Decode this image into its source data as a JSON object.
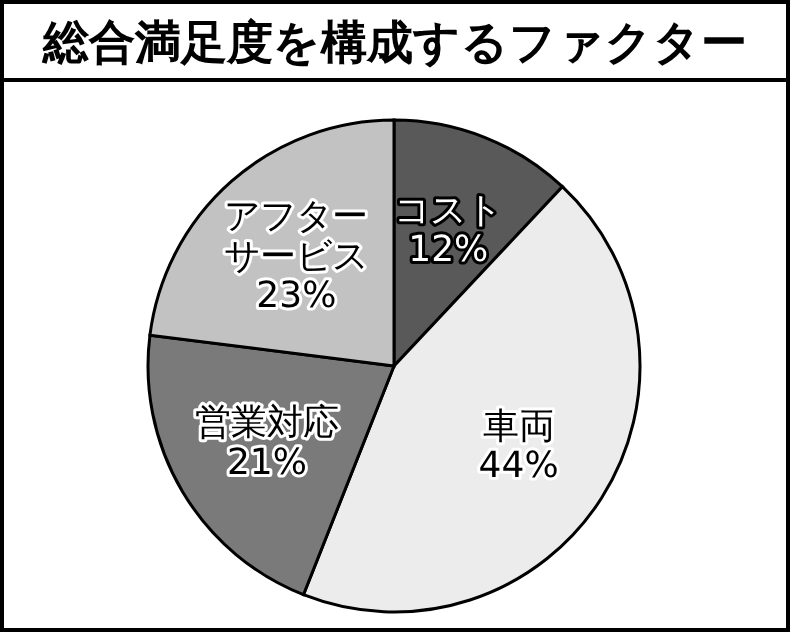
{
  "chart_data": {
    "type": "pie",
    "title": "総合満足度を構成するファクター",
    "categories": [
      "コスト",
      "車両",
      "営業対応",
      "アフターサービス"
    ],
    "values": [
      12,
      44,
      21,
      23
    ],
    "value_labels": [
      "12%",
      "44%",
      "21%",
      "23%"
    ],
    "colors": [
      "#595959",
      "#ececec",
      "#7a7a7a",
      "#c2c2c2"
    ]
  }
}
